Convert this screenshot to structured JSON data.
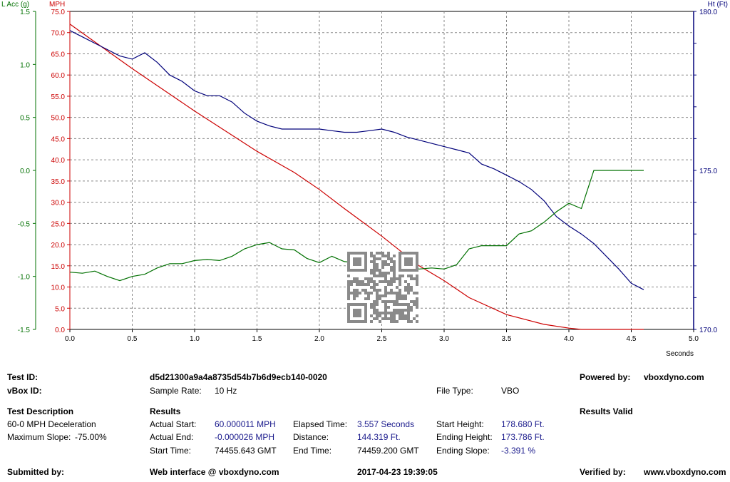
{
  "chart_data": {
    "type": "line",
    "x_axis": {
      "label": "Seconds",
      "range": [
        0,
        5
      ],
      "ticks": [
        "0.0",
        "0.5",
        "1.0",
        "1.5",
        "2.0",
        "2.5",
        "3.0",
        "3.5",
        "4.0",
        "4.5",
        "5.0"
      ]
    },
    "axes": {
      "lacc": {
        "label": "L Acc (g)",
        "range": [
          -1.5,
          1.5
        ],
        "color": "#007000",
        "ticks": [
          "1.5",
          "1.0",
          "0.5",
          "0.0",
          "-0.5",
          "-1.0",
          "-1.5"
        ]
      },
      "mph": {
        "label": "MPH",
        "range": [
          0,
          75
        ],
        "color": "#cc0000",
        "ticks": [
          "75.0",
          "70.0",
          "65.0",
          "60.0",
          "55.0",
          "50.0",
          "45.0",
          "40.0",
          "35.0",
          "30.0",
          "25.0",
          "20.0",
          "15.0",
          "10.0",
          "5.0",
          "0.0"
        ]
      },
      "ht": {
        "label": "Ht (Ft)",
        "range": [
          170,
          180
        ],
        "color": "#00007a",
        "ticks": [
          "180.0",
          "175.0",
          "170.0"
        ]
      }
    },
    "grid": true,
    "series": [
      {
        "axis": "mph",
        "color": "#cc0000",
        "x": [
          0,
          0.5,
          1.0,
          1.5,
          1.8,
          2.0,
          2.2,
          2.5,
          2.8,
          3.0,
          3.2,
          3.5,
          3.8,
          4.0,
          4.1,
          4.3,
          4.6
        ],
        "y": [
          72,
          61.5,
          51.5,
          42,
          37,
          33,
          28.5,
          22,
          15,
          11.5,
          7.5,
          3.5,
          1.2,
          0.3,
          0,
          0,
          0
        ]
      },
      {
        "axis": "ht",
        "color": "#00007a",
        "x": [
          0,
          0.1,
          0.2,
          0.3,
          0.4,
          0.5,
          0.6,
          0.7,
          0.8,
          0.9,
          1.0,
          1.1,
          1.2,
          1.3,
          1.4,
          1.5,
          1.6,
          1.7,
          1.8,
          1.9,
          2.0,
          2.1,
          2.2,
          2.3,
          2.4,
          2.5,
          2.6,
          2.7,
          2.8,
          2.9,
          3.0,
          3.1,
          3.2,
          3.3,
          3.4,
          3.5,
          3.6,
          3.7,
          3.8,
          3.9,
          4.0,
          4.1,
          4.2,
          4.3,
          4.4,
          4.5,
          4.6
        ],
        "y": [
          179.4,
          179.2,
          179.0,
          178.8,
          178.6,
          178.5,
          178.7,
          178.4,
          178.0,
          177.8,
          177.5,
          177.35,
          177.35,
          177.15,
          176.8,
          176.55,
          176.4,
          176.3,
          176.3,
          176.3,
          176.3,
          176.25,
          176.2,
          176.2,
          176.25,
          176.3,
          176.2,
          176.05,
          175.95,
          175.85,
          175.75,
          175.65,
          175.55,
          175.2,
          175.05,
          174.85,
          174.65,
          174.4,
          174.05,
          173.55,
          173.25,
          173.0,
          172.7,
          172.3,
          171.9,
          171.45,
          171.25
        ]
      },
      {
        "axis": "lacc",
        "color": "#007000",
        "x": [
          0,
          0.1,
          0.2,
          0.3,
          0.4,
          0.5,
          0.6,
          0.7,
          0.8,
          0.9,
          1.0,
          1.1,
          1.2,
          1.3,
          1.4,
          1.5,
          1.6,
          1.7,
          1.8,
          1.9,
          2.0,
          2.1,
          2.2,
          2.3,
          2.4,
          2.5,
          2.6,
          2.7,
          2.8,
          2.9,
          3.0,
          3.1,
          3.2,
          3.3,
          3.4,
          3.5,
          3.6,
          3.7,
          3.8,
          3.9,
          4.0,
          4.1,
          4.2,
          4.3,
          4.4,
          4.5,
          4.6
        ],
        "y": [
          -0.96,
          -0.97,
          -0.95,
          -1.0,
          -1.04,
          -1.0,
          -0.98,
          -0.92,
          -0.88,
          -0.88,
          -0.85,
          -0.84,
          -0.85,
          -0.81,
          -0.74,
          -0.7,
          -0.68,
          -0.74,
          -0.75,
          -0.83,
          -0.87,
          -0.81,
          -0.86,
          -0.87,
          -0.9,
          -0.9,
          -0.88,
          -0.9,
          -0.93,
          -0.92,
          -0.93,
          -0.89,
          -0.74,
          -0.71,
          -0.71,
          -0.71,
          -0.6,
          -0.57,
          -0.49,
          -0.39,
          -0.31,
          -0.36,
          0.0,
          0.0,
          0.0,
          0.0,
          0.0
        ]
      }
    ]
  },
  "info": {
    "test_id_label": "Test ID:",
    "test_id_value": "d5d21300a9a4a8735d54b7b6d9ecb140-0020",
    "powered_by_label": "Powered by:",
    "powered_by_value": "vboxdyno.com",
    "vbox_id_label": "vBox ID:",
    "sample_rate_label": "Sample Rate:",
    "sample_rate_value": "10 Hz",
    "file_type_label": "File Type:",
    "file_type_value": "VBO",
    "test_description_label": "Test Description",
    "test_description_value": "60-0 MPH Deceleration",
    "max_slope_label": "Maximum Slope:",
    "max_slope_value": "-75.00%",
    "results_label": "Results",
    "results_valid": "Results Valid",
    "actual_start_label": "Actual Start:",
    "actual_start_value": "60.000011 MPH",
    "actual_end_label": "Actual End:",
    "actual_end_value": "-0.000026 MPH",
    "start_time_label": "Start Time:",
    "start_time_value": "74455.643 GMT",
    "elapsed_time_label": "Elapsed Time:",
    "elapsed_time_value": "3.557 Seconds",
    "distance_label": "Distance:",
    "distance_value": "144.319 Ft.",
    "end_time_label": "End Time:",
    "end_time_value": "74459.200 GMT",
    "start_height_label": "Start Height:",
    "start_height_value": "178.680 Ft.",
    "ending_height_label": "Ending Height:",
    "ending_height_value": "173.786 Ft.",
    "ending_slope_label": "Ending Slope:",
    "ending_slope_value": "-3.391 %",
    "submitted_by_label": "Submitted by:",
    "web_interface": "Web interface @ vboxdyno.com",
    "datetime": "2017-04-23 19:39:05",
    "verified_by_label": "Verified by:",
    "verified_by_value": "www.vboxdyno.com"
  }
}
